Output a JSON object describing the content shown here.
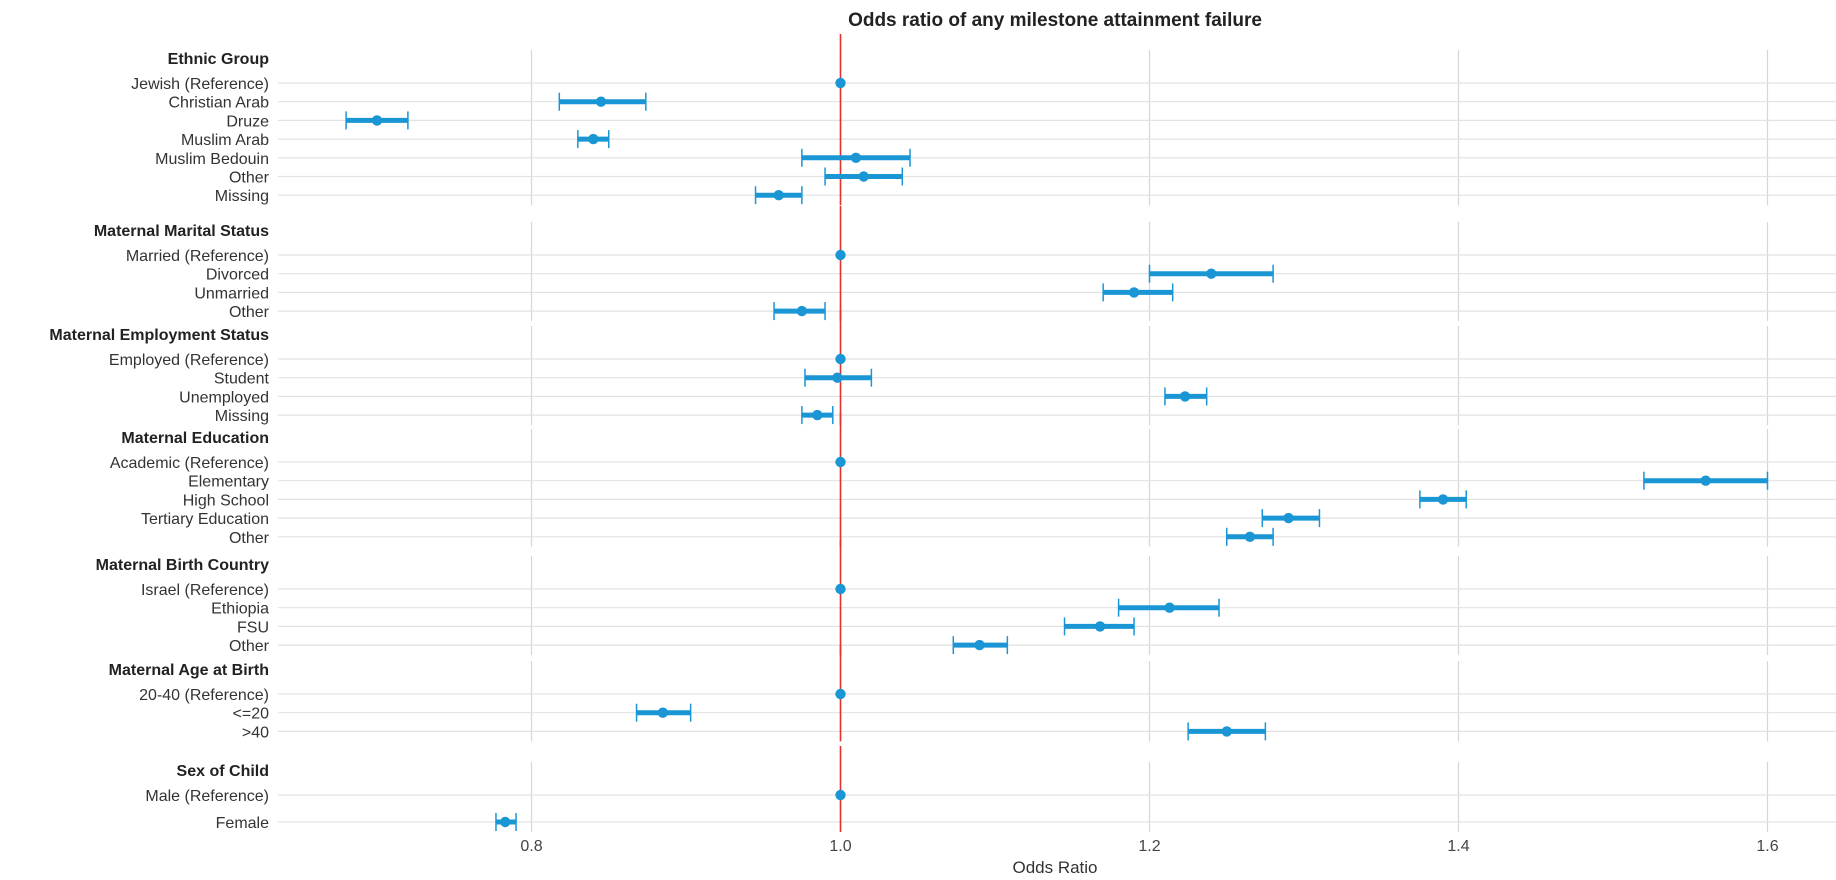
{
  "chart_data": {
    "type": "forest",
    "title": "Odds ratio of any milestone attainment failure",
    "xlabel": "Odds Ratio",
    "xlim": [
      0.6,
      1.65
    ],
    "xticks": [
      0.8,
      1.0,
      1.2,
      1.4,
      1.6
    ],
    "xtick_labels": [
      "0.8",
      "1.0",
      "1.2",
      "1.4",
      "1.6"
    ],
    "reference_line": 1.0,
    "colors": {
      "marker": "#1a96d5",
      "reference_line": "#e0332f",
      "grid": "#d6d6d6"
    },
    "groups": [
      {
        "name": "Ethnic Group",
        "rows": [
          {
            "label": "Jewish (Reference)",
            "or": 1.0,
            "lo": null,
            "hi": null
          },
          {
            "label": "Christian Arab",
            "or": 0.845,
            "lo": 0.818,
            "hi": 0.874
          },
          {
            "label": "Druze",
            "or": 0.7,
            "lo": 0.68,
            "hi": 0.72
          },
          {
            "label": "Muslim Arab",
            "or": 0.84,
            "lo": 0.83,
            "hi": 0.85
          },
          {
            "label": "Muslim Bedouin",
            "or": 1.01,
            "lo": 0.975,
            "hi": 1.045
          },
          {
            "label": "Other",
            "or": 1.015,
            "lo": 0.99,
            "hi": 1.04
          },
          {
            "label": "Missing",
            "or": 0.96,
            "lo": 0.945,
            "hi": 0.975
          }
        ]
      },
      {
        "name": "Maternal Marital Status",
        "rows": [
          {
            "label": "Married (Reference)",
            "or": 1.0,
            "lo": null,
            "hi": null
          },
          {
            "label": "Divorced",
            "or": 1.24,
            "lo": 1.2,
            "hi": 1.28
          },
          {
            "label": "Unmarried",
            "or": 1.19,
            "lo": 1.17,
            "hi": 1.215
          },
          {
            "label": "Other",
            "or": 0.975,
            "lo": 0.957,
            "hi": 0.99
          }
        ]
      },
      {
        "name": "Maternal Employment Status",
        "rows": [
          {
            "label": "Employed (Reference)",
            "or": 1.0,
            "lo": null,
            "hi": null
          },
          {
            "label": "Student",
            "or": 0.998,
            "lo": 0.977,
            "hi": 1.02
          },
          {
            "label": "Unemployed",
            "or": 1.223,
            "lo": 1.21,
            "hi": 1.237
          },
          {
            "label": "Missing",
            "or": 0.985,
            "lo": 0.975,
            "hi": 0.995
          }
        ]
      },
      {
        "name": "Maternal Education",
        "rows": [
          {
            "label": "Academic (Reference)",
            "or": 1.0,
            "lo": null,
            "hi": null
          },
          {
            "label": "Elementary",
            "or": 1.56,
            "lo": 1.52,
            "hi": 1.6
          },
          {
            "label": "High School",
            "or": 1.39,
            "lo": 1.375,
            "hi": 1.405
          },
          {
            "label": "Tertiary Education",
            "or": 1.29,
            "lo": 1.273,
            "hi": 1.31
          },
          {
            "label": "Other",
            "or": 1.265,
            "lo": 1.25,
            "hi": 1.28
          }
        ]
      },
      {
        "name": "Maternal Birth Country",
        "rows": [
          {
            "label": "Israel (Reference)",
            "or": 1.0,
            "lo": null,
            "hi": null
          },
          {
            "label": "Ethiopia",
            "or": 1.213,
            "lo": 1.18,
            "hi": 1.245
          },
          {
            "label": "FSU",
            "or": 1.168,
            "lo": 1.145,
            "hi": 1.19
          },
          {
            "label": "Other",
            "or": 1.09,
            "lo": 1.073,
            "hi": 1.108
          }
        ]
      },
      {
        "name": "Maternal Age at Birth",
        "rows": [
          {
            "label": "20-40 (Reference)",
            "or": 1.0,
            "lo": null,
            "hi": null
          },
          {
            "label": "<=20",
            "or": 0.885,
            "lo": 0.868,
            "hi": 0.903
          },
          {
            "label": ">40",
            "or": 1.25,
            "lo": 1.225,
            "hi": 1.275
          }
        ]
      },
      {
        "name": "Sex of Child",
        "rows": [
          {
            "label": "Male (Reference)",
            "or": 1.0,
            "lo": null,
            "hi": null
          },
          {
            "label": "Female",
            "or": 0.783,
            "lo": 0.777,
            "hi": 0.79
          }
        ]
      }
    ]
  }
}
